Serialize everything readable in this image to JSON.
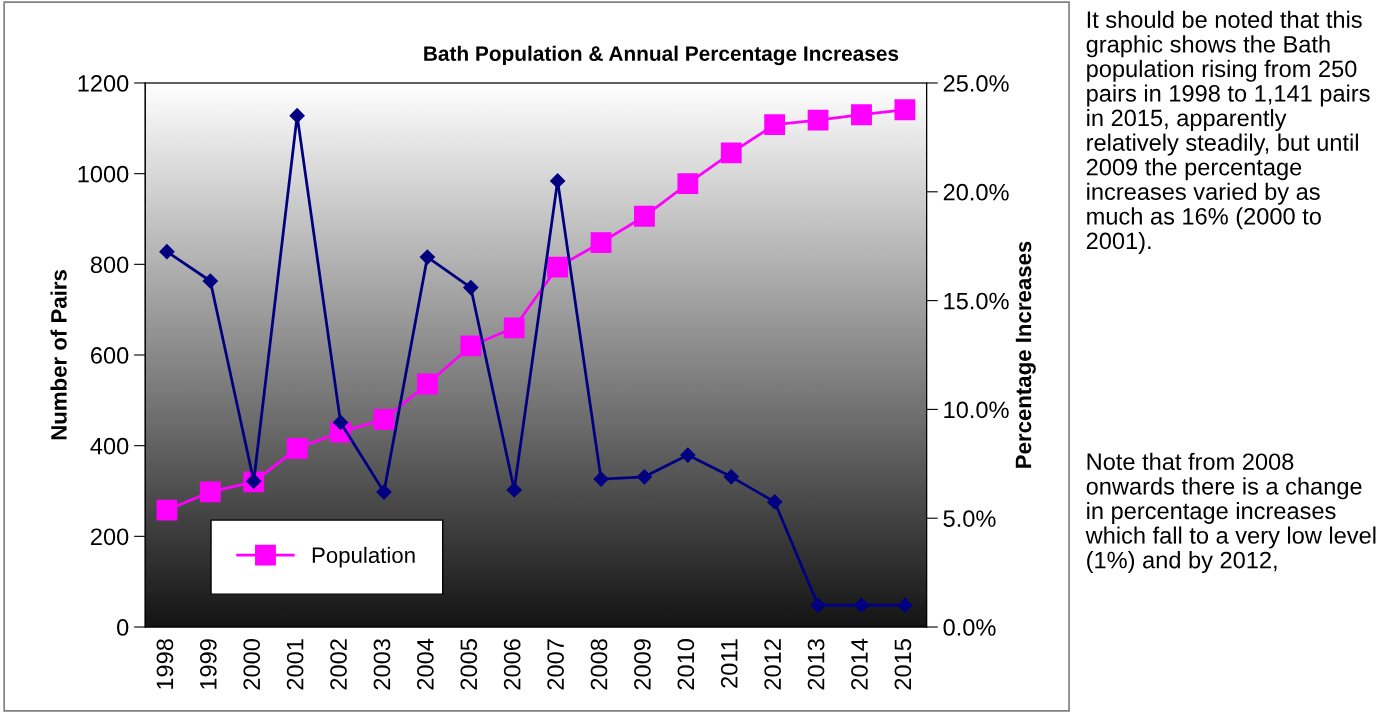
{
  "chart_data": {
    "type": "line",
    "title": "Bath Population & Annual Percentage Increases",
    "ylabel": "Number of Pairs",
    "y2label": "Percentage Increases",
    "categories": [
      "1998",
      "1999",
      "2000",
      "2001",
      "2002",
      "2003",
      "2004",
      "2005",
      "2006",
      "2007",
      "2008",
      "2009",
      "2010",
      "2011",
      "2012",
      "2013",
      "2014",
      "2015"
    ],
    "series": [
      {
        "name": "Population",
        "color": "#ff00ff",
        "marker": "square",
        "values": [
          258,
          298,
          320,
          394,
          430,
          458,
          536,
          620,
          660,
          794,
          848,
          906,
          978,
          1046,
          1108,
          1118,
          1130,
          1141
        ]
      },
      {
        "color": "#000080",
        "marker": "diamond",
        "axis": "y2",
        "values": [
          17.25,
          15.9,
          6.7,
          23.5,
          9.4,
          6.2,
          17.0,
          15.6,
          6.3,
          20.5,
          6.8,
          6.9,
          7.9,
          6.9,
          5.75,
          1.0,
          1.0,
          1.0
        ]
      }
    ],
    "ylim": [
      0,
      1200
    ],
    "yticks": [
      0,
      200,
      400,
      600,
      800,
      1000,
      1200
    ],
    "y2lim": [
      0,
      25
    ],
    "y2ticks": [
      {
        "value": 0,
        "label": "0.0%"
      },
      {
        "value": 5,
        "label": "5.0%"
      },
      {
        "value": 10,
        "label": "10.0%"
      },
      {
        "value": 15,
        "label": "15.0%"
      },
      {
        "value": 20,
        "label": "20.0%"
      },
      {
        "value": 25,
        "label": "25.0%"
      }
    ],
    "grid": false,
    "legend": "bottom left",
    "line_style": "solid",
    "annotations": [
      "It should be noted that this graphic shows the Bath population rising from 250 pairs in 1998 to 1,141 pairs in 2015, apparently relatively steadily, but until 2009 the percentage increases varied by as much as 16% (2000 to 2001).",
      "Note that from 2008 onwards there is a change in percentage increases which fall to a very low level (1%) and by 2012,"
    ]
  }
}
